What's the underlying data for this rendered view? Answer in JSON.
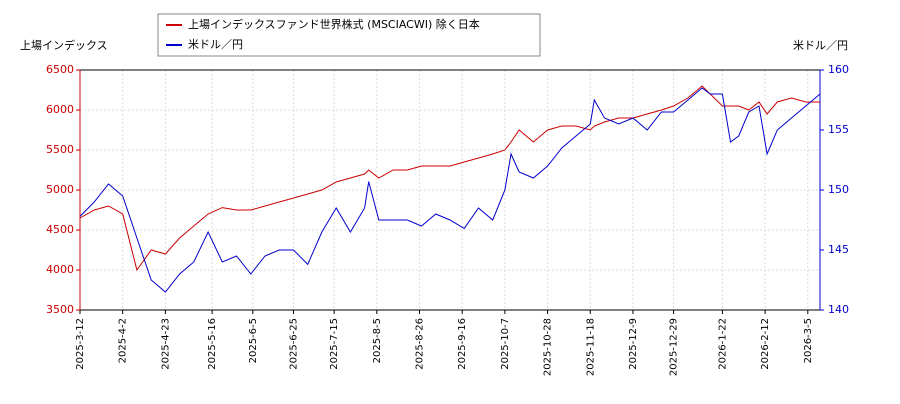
{
  "chart_data": {
    "type": "line",
    "y_label": "上場インデックス",
    "y2_label": "米ドル／円",
    "x": [
      "2025-3-12",
      "2025-3-19",
      "2025-3-26",
      "2025-4-2",
      "2025-4-9",
      "2025-4-16",
      "2025-4-23",
      "2025-4-30",
      "2025-5-7",
      "2025-5-14",
      "2025-5-21",
      "2025-5-28",
      "2025-6-4",
      "2025-6-11",
      "2025-6-18",
      "2025-6-25",
      "2025-7-2",
      "2025-7-9",
      "2025-7-16",
      "2025-7-23",
      "2025-7-30",
      "2025-8-1",
      "2025-8-6",
      "2025-8-13",
      "2025-8-20",
      "2025-8-27",
      "2025-9-3",
      "2025-9-10",
      "2025-9-17",
      "2025-9-24",
      "2025-10-1",
      "2025-10-7",
      "2025-10-10",
      "2025-10-14",
      "2025-10-21",
      "2025-10-28",
      "2025-11-4",
      "2025-11-11",
      "2025-11-18",
      "2025-11-20",
      "2025-11-25",
      "2025-12-2",
      "2025-12-9",
      "2025-12-16",
      "2025-12-23",
      "2025-12-29",
      "2026-1-5",
      "2026-1-12",
      "2026-1-16",
      "2026-1-22",
      "2026-1-26",
      "2026-1-30",
      "2026-2-4",
      "2026-2-9",
      "2026-2-13",
      "2026-2-18",
      "2026-2-25",
      "2026-3-4",
      "2026-3-11"
    ],
    "series": [
      {
        "name": "上場インデックスファンド世界株式 (MSCIACWI) 除く日本",
        "color": "#cc0000",
        "axis": "y",
        "values": [
          4650,
          4750,
          4800,
          4700,
          4000,
          4250,
          4200,
          4400,
          4550,
          4700,
          4780,
          4750,
          4750,
          4800,
          4850,
          4900,
          4950,
          5000,
          5100,
          5150,
          5200,
          5250,
          5150,
          5250,
          5250,
          5300,
          5300,
          5300,
          5350,
          5400,
          5450,
          5500,
          5600,
          5750,
          5600,
          5750,
          5800,
          5800,
          5750,
          5800,
          5850,
          5900,
          5900,
          5950,
          6000,
          6050,
          6150,
          6300,
          6200,
          6050,
          6050,
          6050,
          6000,
          6100,
          5950,
          6100,
          6150,
          6100,
          6100
        ]
      },
      {
        "name": "米ドル／円",
        "color": "#0000cc",
        "axis": "y2",
        "values": [
          147.8,
          149.0,
          150.5,
          149.5,
          146.0,
          142.5,
          141.5,
          143.0,
          144.0,
          146.5,
          144.0,
          144.5,
          143.0,
          144.5,
          145.0,
          145.0,
          143.8,
          146.5,
          148.5,
          146.5,
          148.5,
          150.7,
          147.5,
          147.5,
          147.5,
          147.0,
          148.0,
          147.5,
          146.8,
          148.5,
          147.5,
          150.0,
          153.0,
          151.5,
          151.0,
          152.0,
          153.5,
          154.5,
          155.5,
          157.5,
          156.0,
          155.5,
          156.0,
          155.0,
          156.5,
          156.5,
          157.5,
          158.5,
          158.0,
          158.0,
          154.0,
          154.5,
          156.5,
          157.0,
          153.0,
          155.0,
          156.0,
          157.0,
          158.0
        ]
      }
    ],
    "xlim": [
      "2025-3-12",
      "2026-3-11"
    ],
    "xticks": [
      "2025-3-12",
      "2025-4-2",
      "2025-4-23",
      "2025-5-16",
      "2025-6-5",
      "2025-6-25",
      "2025-7-15",
      "2025-8-5",
      "2025-8-26",
      "2025-9-16",
      "2025-10-7",
      "2025-10-28",
      "2025-11-18",
      "2025-12-9",
      "2025-12-29",
      "2026-1-22",
      "2026-2-12",
      "2026-3-5"
    ],
    "ylim": [
      3500,
      6500
    ],
    "yticks": [
      3500,
      4000,
      4500,
      5000,
      5500,
      6000,
      6500
    ],
    "y2lim": [
      140,
      160
    ],
    "y2ticks": [
      140,
      145,
      150,
      155,
      160
    ],
    "grid": true
  }
}
